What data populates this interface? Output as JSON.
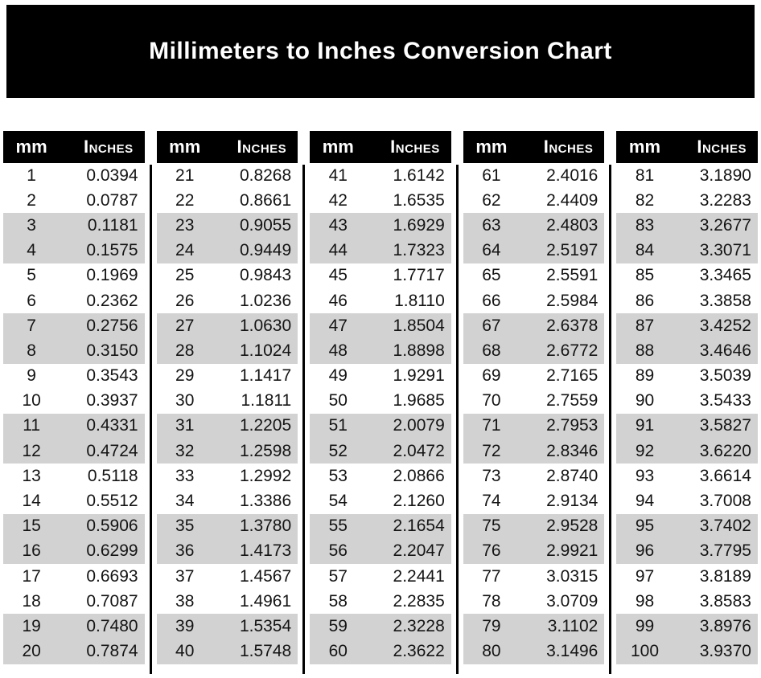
{
  "page": {
    "title": "Millimeters to Inches Conversion Chart"
  },
  "colors": {
    "banner_bg": "#000000",
    "header_bg": "#000000",
    "header_text": "#ffffff",
    "stripe": "#d2d2d2",
    "text": "#141414"
  },
  "table": {
    "col_header": {
      "mm": "mm",
      "inches": "Inches"
    },
    "columns": [
      {
        "rows": [
          [
            "1",
            "0.0394"
          ],
          [
            "2",
            "0.0787"
          ],
          [
            "3",
            "0.1181"
          ],
          [
            "4",
            "0.1575"
          ],
          [
            "5",
            "0.1969"
          ],
          [
            "6",
            "0.2362"
          ],
          [
            "7",
            "0.2756"
          ],
          [
            "8",
            "0.3150"
          ],
          [
            "9",
            "0.3543"
          ],
          [
            "10",
            "0.3937"
          ],
          [
            "11",
            "0.4331"
          ],
          [
            "12",
            "0.4724"
          ],
          [
            "13",
            "0.5118"
          ],
          [
            "14",
            "0.5512"
          ],
          [
            "15",
            "0.5906"
          ],
          [
            "16",
            "0.6299"
          ],
          [
            "17",
            "0.6693"
          ],
          [
            "18",
            "0.7087"
          ],
          [
            "19",
            "0.7480"
          ],
          [
            "20",
            "0.7874"
          ]
        ]
      },
      {
        "rows": [
          [
            "21",
            "0.8268"
          ],
          [
            "22",
            "0.8661"
          ],
          [
            "23",
            "0.9055"
          ],
          [
            "24",
            "0.9449"
          ],
          [
            "25",
            "0.9843"
          ],
          [
            "26",
            "1.0236"
          ],
          [
            "27",
            "1.0630"
          ],
          [
            "28",
            "1.1024"
          ],
          [
            "29",
            "1.1417"
          ],
          [
            "30",
            "1.1811"
          ],
          [
            "31",
            "1.2205"
          ],
          [
            "32",
            "1.2598"
          ],
          [
            "33",
            "1.2992"
          ],
          [
            "34",
            "1.3386"
          ],
          [
            "35",
            "1.3780"
          ],
          [
            "36",
            "1.4173"
          ],
          [
            "37",
            "1.4567"
          ],
          [
            "38",
            "1.4961"
          ],
          [
            "39",
            "1.5354"
          ],
          [
            "40",
            "1.5748"
          ]
        ]
      },
      {
        "rows": [
          [
            "41",
            "1.6142"
          ],
          [
            "42",
            "1.6535"
          ],
          [
            "43",
            "1.6929"
          ],
          [
            "44",
            "1.7323"
          ],
          [
            "45",
            "1.7717"
          ],
          [
            "46",
            "1.8110"
          ],
          [
            "47",
            "1.8504"
          ],
          [
            "48",
            "1.8898"
          ],
          [
            "49",
            "1.9291"
          ],
          [
            "50",
            "1.9685"
          ],
          [
            "51",
            "2.0079"
          ],
          [
            "52",
            "2.0472"
          ],
          [
            "53",
            "2.0866"
          ],
          [
            "54",
            "2.1260"
          ],
          [
            "55",
            "2.1654"
          ],
          [
            "56",
            "2.2047"
          ],
          [
            "57",
            "2.2441"
          ],
          [
            "58",
            "2.2835"
          ],
          [
            "59",
            "2.3228"
          ],
          [
            "60",
            "2.3622"
          ]
        ]
      },
      {
        "rows": [
          [
            "61",
            "2.4016"
          ],
          [
            "62",
            "2.4409"
          ],
          [
            "63",
            "2.4803"
          ],
          [
            "64",
            "2.5197"
          ],
          [
            "65",
            "2.5591"
          ],
          [
            "66",
            "2.5984"
          ],
          [
            "67",
            "2.6378"
          ],
          [
            "68",
            "2.6772"
          ],
          [
            "69",
            "2.7165"
          ],
          [
            "70",
            "2.7559"
          ],
          [
            "71",
            "2.7953"
          ],
          [
            "72",
            "2.8346"
          ],
          [
            "73",
            "2.8740"
          ],
          [
            "74",
            "2.9134"
          ],
          [
            "75",
            "2.9528"
          ],
          [
            "76",
            "2.9921"
          ],
          [
            "77",
            "3.0315"
          ],
          [
            "78",
            "3.0709"
          ],
          [
            "79",
            "3.1102"
          ],
          [
            "80",
            "3.1496"
          ]
        ]
      },
      {
        "rows": [
          [
            "81",
            "3.1890"
          ],
          [
            "82",
            "3.2283"
          ],
          [
            "83",
            "3.2677"
          ],
          [
            "84",
            "3.3071"
          ],
          [
            "85",
            "3.3465"
          ],
          [
            "86",
            "3.3858"
          ],
          [
            "87",
            "3.4252"
          ],
          [
            "88",
            "3.4646"
          ],
          [
            "89",
            "3.5039"
          ],
          [
            "90",
            "3.5433"
          ],
          [
            "91",
            "3.5827"
          ],
          [
            "92",
            "3.6220"
          ],
          [
            "93",
            "3.6614"
          ],
          [
            "94",
            "3.7008"
          ],
          [
            "95",
            "3.7402"
          ],
          [
            "96",
            "3.7795"
          ],
          [
            "97",
            "3.8189"
          ],
          [
            "98",
            "3.8583"
          ],
          [
            "99",
            "3.8976"
          ],
          [
            "100",
            "3.9370"
          ]
        ]
      }
    ]
  }
}
